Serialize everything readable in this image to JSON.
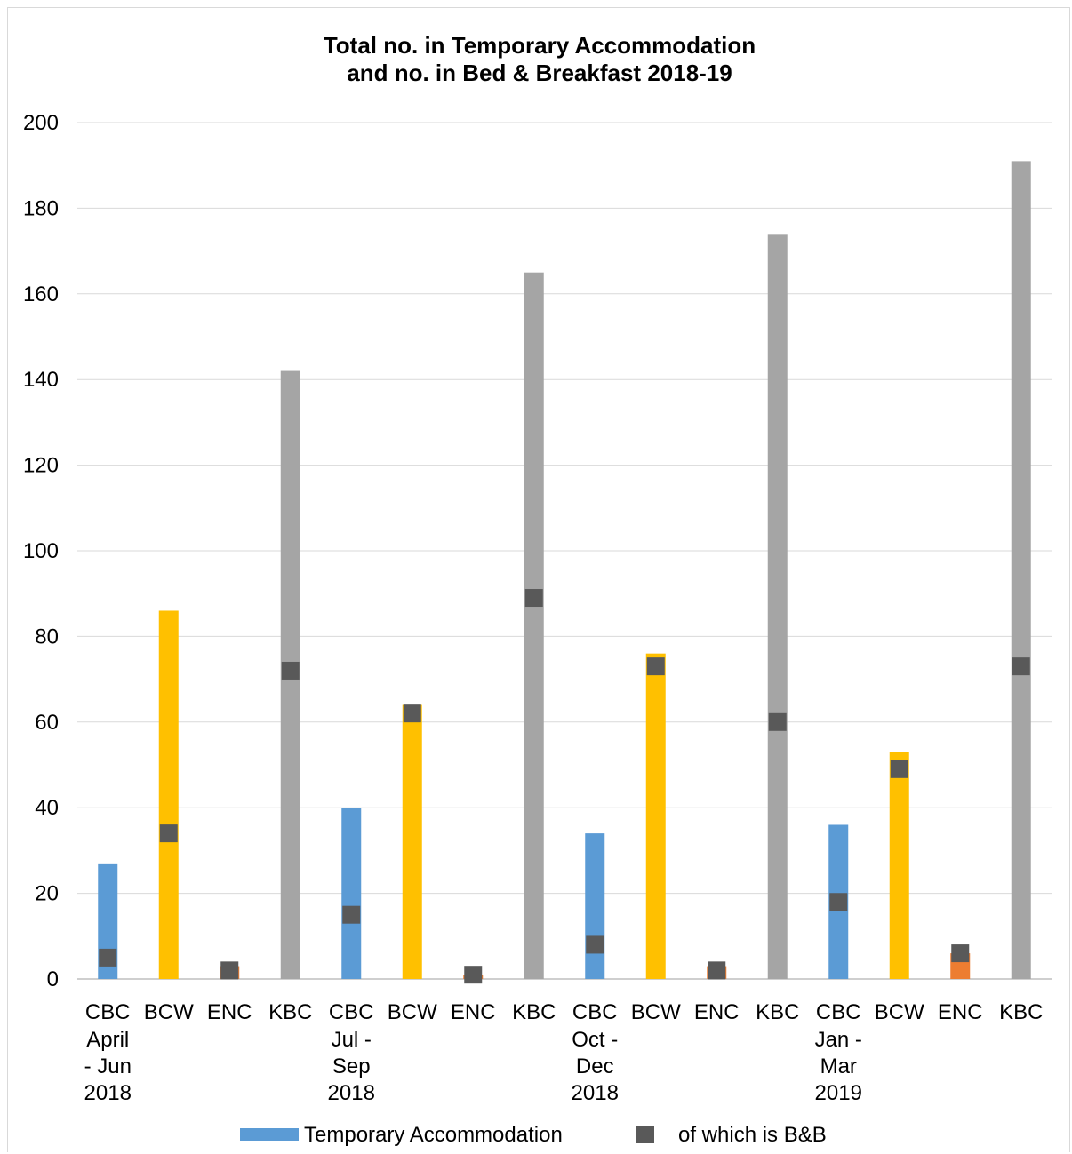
{
  "chart_data": {
    "type": "bar",
    "title": [
      "Total no. in Temporary Accommodation",
      "and no. in Bed & Breakfast 2018-19"
    ],
    "ylim": [
      0,
      200
    ],
    "yticks": [
      0,
      20,
      40,
      60,
      80,
      100,
      120,
      140,
      160,
      180,
      200
    ],
    "grid": true,
    "legend_position": "bottom",
    "categories": [
      {
        "name": "CBC",
        "period": [
          "April",
          "- Jun",
          "2018"
        ]
      },
      {
        "name": "BCW",
        "period": []
      },
      {
        "name": "ENC",
        "period": []
      },
      {
        "name": "KBC",
        "period": []
      },
      {
        "name": "CBC",
        "period": [
          "Jul -",
          "Sep",
          "2018"
        ]
      },
      {
        "name": "BCW",
        "period": []
      },
      {
        "name": "ENC",
        "period": []
      },
      {
        "name": "KBC",
        "period": []
      },
      {
        "name": "CBC",
        "period": [
          "Oct -",
          "Dec",
          "2018"
        ]
      },
      {
        "name": "BCW",
        "period": []
      },
      {
        "name": "ENC",
        "period": []
      },
      {
        "name": "KBC",
        "period": []
      },
      {
        "name": "CBC",
        "period": [
          "Jan -",
          "Mar",
          "2019"
        ]
      },
      {
        "name": "BCW",
        "period": []
      },
      {
        "name": "ENC",
        "period": []
      },
      {
        "name": "KBC",
        "period": []
      }
    ],
    "bar_colors": [
      "#5b9bd5",
      "#ffc000",
      "#ed7d31",
      "#a5a5a5"
    ],
    "marker_color": "#595959",
    "series": [
      {
        "name": "Temporary Accommodation",
        "type": "bar",
        "values": [
          27,
          86,
          3,
          142,
          40,
          64,
          1,
          165,
          34,
          76,
          3,
          174,
          36,
          53,
          6,
          191
        ]
      },
      {
        "name": "of which is B&B",
        "type": "marker",
        "values": [
          5,
          34,
          2,
          72,
          15,
          62,
          1,
          89,
          8,
          73,
          2,
          60,
          18,
          49,
          6,
          73
        ]
      }
    ]
  }
}
